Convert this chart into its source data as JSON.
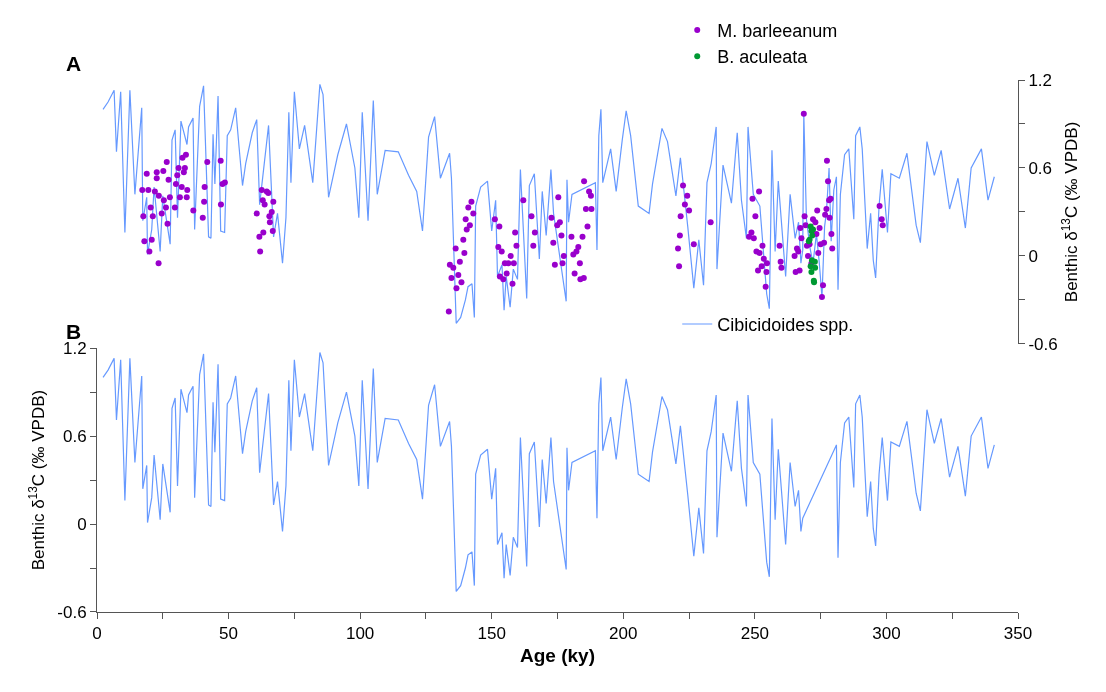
{
  "chart_data": [
    {
      "type": "scatter",
      "annotations": [
        "A"
      ],
      "y2label": "Benthic δ$^{13}$C (‰ VPDB)",
      "xlim": [
        0,
        350
      ],
      "y2lim": [
        -0.6,
        1.2
      ],
      "y2ticks": [
        -0.6,
        {
          "value": -0.3,
          "label": null
        },
        0,
        {
          "value": 0.3,
          "label": null
        },
        0.6,
        {
          "value": 0.9,
          "label": null
        },
        1.2
      ],
      "tick_labels": "y",
      "legend": "top",
      "series": [
        {
          "type": "line",
          "axis": "y2",
          "color": "#6699ff",
          "marker": "none",
          "x": [
            2.3,
            4.2,
            6.5,
            7.4,
            9,
            10.6,
            12.5,
            14.4,
            17,
            17.4,
            18.9,
            19.2,
            20.8,
            21.7,
            24,
            25,
            27.8,
            28.5,
            29.7,
            30.6,
            31.9,
            34.2,
            34.8,
            36.5,
            37.1,
            39,
            40.5,
            42.4,
            43.3,
            44.1,
            44.8,
            46,
            47,
            48.5,
            49.5,
            50.8,
            52.7,
            54,
            55.3,
            56.5,
            59,
            60.7,
            61.8,
            65.2,
            67.1,
            68.6,
            70.5,
            71.8,
            72.9,
            73.7,
            75,
            76.9,
            78.9,
            82,
            84.7,
            85.9,
            88,
            91.5,
            94.8,
            98,
            99.5,
            100.8,
            103,
            105,
            106.5,
            109.5,
            114.5,
            118.4,
            121.5,
            123.7,
            126,
            128.3,
            130.5,
            134,
            134.7,
            136.5,
            138.2,
            140,
            141,
            142.5,
            143.4,
            143.9,
            145.8,
            148.4,
            150,
            151.5,
            152.2,
            153.9,
            154.7,
            155.5,
            157,
            158.2,
            159.8,
            160.9,
            163.3,
            164.3,
            166.2,
            168.1,
            169.2,
            170.7,
            172.5,
            173.5,
            178.3,
            178.6,
            179.2,
            180.5,
            189.4,
            190,
            190.7,
            191.5,
            192.2,
            195.2,
            197.3,
            199.6,
            201.1,
            202.8,
            205.7,
            209.8,
            211.1,
            214.7,
            216.8,
            220,
            221.7,
            224.5,
            226.8,
            228.7,
            230.5,
            231.8,
            233.4,
            235.3,
            235.6,
            237.9,
            241.1,
            243.3,
            244.9,
            246.8,
            247.4,
            249.4,
            251.9,
            254.5,
            255.5,
            256.5,
            257.7,
            258.9,
            261.7,
            263.4,
            265.3,
            266.6,
            267.5,
            268.2,
            268.6,
            269.6,
            271,
            272.1,
            273.4,
            274.5,
            275.5,
            276.5,
            277.2,
            278.2,
            279,
            280,
            281,
            281.6,
            282.5,
            284.1,
            285.7,
            287.6,
            288.3,
            289.9,
            290.8,
            292.7,
            294,
            295,
            295.9,
            297.2,
            298.4,
            300.4,
            301.7,
            304.9,
            307.8,
            311.3,
            312.9,
            315.4,
            318.2,
            320.8,
            324,
            327.2,
            330,
            332.2,
            336.1,
            338.6,
            341
          ],
          "values": [
            1.0,
            1.05,
            1.13,
            0.71,
            1.12,
            0.16,
            1.13,
            0.42,
            1.01,
            0.24,
            0.4,
            0.01,
            0.18,
            0.47,
            0.03,
            0.41,
            0.08,
            0.79,
            0.86,
            0.26,
            0.92,
            0.76,
            0.88,
            0.94,
            0.18,
            1.02,
            1.16,
            0.13,
            0.12,
            0.83,
            0.49,
            1.09,
            0.17,
            0.16,
            0.82,
            0.86,
            1.01,
            0.74,
            0.48,
            0.63,
            0.84,
            0.93,
            0.35,
            0.89,
            0.13,
            0.29,
            -0.05,
            0.26,
            0.98,
            0.5,
            1.12,
            0.73,
            0.89,
            0.5,
            1.17,
            1.1,
            0.4,
            0.69,
            0.9,
            0.6,
            0.26,
            0.98,
            0.24,
            1.06,
            0.42,
            0.72,
            0.71,
            0.55,
            0.44,
            0.17,
            0.81,
            0.95,
            0.53,
            0.7,
            0.53,
            -0.46,
            -0.42,
            -0.3,
            -0.21,
            -0.19,
            -0.42,
            0.34,
            0.47,
            0.51,
            0.17,
            0.38,
            -0.14,
            -0.06,
            -0.37,
            -0.14,
            -0.35,
            -0.09,
            -0.16,
            0.59,
            -0.29,
            0.48,
            0.56,
            -0.02,
            0.44,
            0.14,
            0.59,
            0.29,
            -0.31,
            0.52,
            0.23,
            0.42,
            0.5,
            0.04,
            0.82,
            1.0,
            0.5,
            0.73,
            0.44,
            0.79,
            0.99,
            0.82,
            0.34,
            0.29,
            0.49,
            0.87,
            0.78,
            0.41,
            0.67,
            0.2,
            -0.22,
            0.11,
            -0.2,
            0.5,
            0.63,
            0.88,
            -0.09,
            0.62,
            0.36,
            0.84,
            0.38,
            0.12,
            0.88,
            0.42,
            0.34,
            -0.26,
            -0.36,
            0.72,
            0.03,
            0.51,
            -0.14,
            0.42,
            0.12,
            0.23,
            -0.05,
            0.04,
            0.97,
            0.25,
            0.05,
            -0.05,
            0.15,
            -0.05,
            -0.28,
            0.2,
            0.3,
            0.6,
            0.1,
            0.45,
            0.54,
            -0.23,
            0.42,
            0.69,
            0.73,
            0.25,
            0.82,
            0.88,
            0.73,
            0.05,
            0.29,
            -0.03,
            -0.15,
            0.34,
            0.59,
            0.16,
            0.56,
            0.53,
            0.7,
            0.21,
            0.09,
            0.78,
            0.55,
            0.72,
            0.32,
            0.53,
            0.19,
            0.6,
            0.73,
            0.38,
            0.54
          ]
        },
        {
          "type": "scatter",
          "axis": "y2",
          "name": "M. barleeanum",
          "color": "#9900cc",
          "marker": "circle",
          "x": [
            17.2,
            17.6,
            18.0,
            18.9,
            19.5,
            19.9,
            20.4,
            20.8,
            21.2,
            22.0,
            22.7,
            22.7,
            23.4,
            23.5,
            24.6,
            25.2,
            25.4,
            26.2,
            26.5,
            26.8,
            27.2,
            27.7,
            29.6,
            30.0,
            30.5,
            31.0,
            31.5,
            32.2,
            32.5,
            33.0,
            33.4,
            33.8,
            34.1,
            34.3,
            36.6,
            40.2,
            40.7,
            40.9,
            41.9,
            47.1,
            47.0,
            47.7,
            48.6,
            60.7,
            61.7,
            62.0,
            62.6,
            63.0,
            63.2,
            63.7,
            64.5,
            65.1,
            65.5,
            65.7,
            66.4,
            66.8,
            67.0,
            133.7,
            134.1,
            134.7,
            135.4,
            136.3,
            136.6,
            137.3,
            137.9,
            138.5,
            139.2,
            139.6,
            140.1,
            140.5,
            141.1,
            141.7,
            142.3,
            143.0,
            151.2,
            152.5,
            152.9,
            153.1,
            153.8,
            154.4,
            155.0,
            155.7,
            156.3,
            157.2,
            157.9,
            158.4,
            158.9,
            159.4,
            162.0,
            165.1,
            165.8,
            166.4,
            172.7,
            173.4,
            174.0,
            174.9,
            175.3,
            175.9,
            176.5,
            176.9,
            177.4,
            180.3,
            181.0,
            181.5,
            182.2,
            182.9,
            183.5,
            183.7,
            184.5,
            185.0,
            185.1,
            185.8,
            186.4,
            187.0,
            187.7,
            187.9,
            220.8,
            221.2,
            221.5,
            221.8,
            222.7,
            223.4,
            224.3,
            225.0,
            226.8,
            233.2,
            247.8,
            248.7,
            249.1,
            249.6,
            250.2,
            250.6,
            251.2,
            251.6,
            251.8,
            252.6,
            252.9,
            253.4,
            254.1,
            254.4,
            254.6,
            259.4,
            259.8,
            260.1,
            265.1,
            265.5,
            266.0,
            266.5,
            267.0,
            267.3,
            267.7,
            268.6,
            268.9,
            269.3,
            269.8,
            270.2,
            270.8,
            271.5,
            272.1,
            273.0,
            273.4,
            273.7,
            274.1,
            274.6,
            275.0,
            275.5,
            275.9,
            276.3,
            276.7,
            277.2,
            277.4,
            277.8,
            278.2,
            278.4,
            278.8,
            279.1,
            279.4,
            297.4,
            298.2,
            298.6
          ],
          "values": [
            0.45,
            0.27,
            0.1,
            0.56,
            0.45,
            0.03,
            0.33,
            0.11,
            0.27,
            0.44,
            0.57,
            0.53,
            -0.05,
            0.41,
            0.29,
            0.58,
            0.38,
            0.33,
            0.64,
            0.22,
            0.52,
            0.4,
            0.33,
            0.49,
            0.55,
            0.6,
            0.4,
            0.47,
            0.67,
            0.57,
            0.6,
            0.69,
            0.4,
            0.45,
            0.31,
            0.26,
            0.37,
            0.47,
            0.64,
            0.35,
            0.65,
            0.49,
            0.5,
            0.29,
            0.13,
            0.03,
            0.45,
            0.38,
            0.16,
            0.35,
            0.44,
            0.43,
            0.27,
            0.23,
            0.3,
            0.17,
            0.37,
            -0.38,
            -0.06,
            -0.15,
            -0.08,
            0.05,
            -0.22,
            -0.13,
            -0.04,
            -0.18,
            0.11,
            0.02,
            0.25,
            0.18,
            0.33,
            0.21,
            0.37,
            0.29,
            0.25,
            0.06,
            0.2,
            -0.14,
            0.03,
            -0.16,
            -0.05,
            -0.12,
            -0.05,
            0.0,
            -0.19,
            -0.05,
            0.16,
            0.07,
            0.38,
            0.27,
            0.07,
            0.16,
            0.26,
            0.09,
            -0.06,
            0.21,
            0.4,
            0.23,
            0.14,
            -0.05,
            0.0,
            0.13,
            0.01,
            -0.12,
            0.03,
            0.06,
            -0.05,
            -0.16,
            0.13,
            -0.15,
            0.51,
            0.32,
            0.2,
            0.44,
            0.41,
            0.32,
            0.05,
            -0.07,
            0.14,
            0.27,
            0.48,
            0.35,
            0.41,
            0.31,
            0.08,
            0.23,
            0.13,
            0.16,
            0.39,
            0.12,
            0.27,
            0.03,
            -0.1,
            0.44,
            0.02,
            -0.07,
            0.07,
            -0.02,
            -0.21,
            -0.11,
            -0.05,
            0.07,
            -0.04,
            -0.08,
            0.0,
            -0.11,
            0.05,
            0.03,
            -0.1,
            0.19,
            0.12,
            0.97,
            0.27,
            0.21,
            0.07,
            0.0,
            0.08,
            -0.05,
            0.25,
            0.23,
            0.15,
            0.31,
            0.02,
            0.19,
            0.08,
            -0.28,
            -0.2,
            0.09,
            0.28,
            0.32,
            0.65,
            0.51,
            0.38,
            0.26,
            0.39,
            0.15,
            0.05,
            0.34,
            0.25,
            0.21
          ]
        },
        {
          "type": "scatter",
          "axis": "y2",
          "name": "B. aculeata",
          "color": "#009933",
          "marker": "circle",
          "x": [
            270.5,
            270.8,
            271.2,
            271.5,
            271.8,
            272.1,
            271.7,
            272.8,
            271.2,
            272.9,
            271.5,
            272.4,
            272.5
          ],
          "values": [
            0.1,
            0.11,
            0.2,
            0.17,
            0.14,
            0.18,
            -0.03,
            -0.04,
            -0.07,
            -0.08,
            -0.11,
            -0.17,
            -0.18
          ]
        }
      ]
    },
    {
      "type": "line",
      "annotations": [
        "B"
      ],
      "ylabel": "Benthic δ$^{13}$C (‰ VPDB)",
      "xlabel": "Age (ky)",
      "xlim": [
        0,
        350
      ],
      "ylim": [
        -0.6,
        1.2
      ],
      "xticks": [
        0,
        {
          "value": 25,
          "label": null
        },
        50,
        {
          "value": 75,
          "label": null
        },
        100,
        {
          "value": 125,
          "label": null
        },
        150,
        {
          "value": 175,
          "label": null
        },
        200,
        {
          "value": 225,
          "label": null
        },
        250,
        {
          "value": 275,
          "label": null
        },
        300,
        {
          "value": 325,
          "label": null
        },
        350
      ],
      "yticks": [
        -0.6,
        {
          "value": -0.3,
          "label": null
        },
        0,
        {
          "value": 0.3,
          "label": null
        },
        0.6,
        {
          "value": 0.9,
          "label": null
        },
        1.2
      ],
      "legend": "top",
      "marker": "none",
      "series": [
        {
          "name": "Cibicidoides spp.",
          "color": "#6699ff",
          "x": [
            2.3,
            4.2,
            6.5,
            7.4,
            9,
            10.6,
            12.5,
            14.4,
            17,
            17.4,
            18.9,
            19.2,
            20.8,
            21.7,
            24,
            25,
            27.8,
            28.5,
            29.7,
            30.6,
            31.9,
            34.2,
            34.8,
            36.5,
            37.1,
            39,
            40.5,
            42.4,
            43.3,
            44.1,
            44.8,
            46,
            47,
            48.5,
            49.5,
            50.8,
            52.7,
            54,
            55.3,
            56.5,
            59,
            60.7,
            61.8,
            65.2,
            67.1,
            68.6,
            70.5,
            71.8,
            72.9,
            73.7,
            75,
            76.9,
            78.9,
            82,
            84.7,
            85.9,
            88,
            91.5,
            94.8,
            98,
            99.5,
            100.8,
            103,
            105,
            106.5,
            109.5,
            114.5,
            118.4,
            121.5,
            123.7,
            126,
            128.3,
            130.5,
            134,
            134.7,
            136.5,
            138.2,
            140,
            141,
            142.5,
            143.4,
            143.9,
            145.8,
            148.4,
            150,
            151.5,
            152.2,
            153.9,
            154.7,
            155.5,
            157,
            158.2,
            159.8,
            160.9,
            163.3,
            164.3,
            166.2,
            168.1,
            169.2,
            170.7,
            172.5,
            173.5,
            178.3,
            178.6,
            179.2,
            180.5,
            189.4,
            190,
            190.7,
            191.5,
            192.2,
            195.2,
            197.3,
            199.6,
            201.1,
            202.8,
            205.7,
            209.8,
            211.1,
            214.7,
            216.8,
            220,
            221.7,
            224.5,
            226.8,
            228.7,
            230.5,
            231.8,
            233.4,
            235.3,
            235.6,
            237.9,
            241.1,
            243.3,
            244.9,
            246.8,
            247.4,
            249.4,
            251.9,
            254.5,
            255.5,
            256.5,
            257.7,
            258.9,
            261.7,
            263.4,
            265.3,
            266.6,
            267.5,
            268.2,
            281,
            281.6,
            282.5,
            284.1,
            285.7,
            287.6,
            288.3,
            289.9,
            290.8,
            292.7,
            294,
            295,
            295.9,
            297.2,
            298.4,
            300.4,
            301.7,
            304.9,
            307.8,
            311.3,
            312.9,
            315.4,
            318.2,
            320.8,
            324,
            327.2,
            330,
            332.2,
            336.1,
            338.6,
            341
          ],
          "values": [
            1.0,
            1.05,
            1.13,
            0.71,
            1.12,
            0.16,
            1.13,
            0.42,
            1.01,
            0.24,
            0.4,
            0.01,
            0.18,
            0.47,
            0.03,
            0.41,
            0.08,
            0.79,
            0.86,
            0.26,
            0.92,
            0.76,
            0.88,
            0.94,
            0.18,
            1.02,
            1.16,
            0.13,
            0.12,
            0.83,
            0.49,
            1.09,
            0.17,
            0.16,
            0.82,
            0.86,
            1.01,
            0.74,
            0.48,
            0.63,
            0.84,
            0.93,
            0.35,
            0.89,
            0.13,
            0.29,
            -0.05,
            0.26,
            0.98,
            0.5,
            1.12,
            0.73,
            0.89,
            0.5,
            1.17,
            1.1,
            0.4,
            0.69,
            0.9,
            0.6,
            0.26,
            0.98,
            0.24,
            1.06,
            0.42,
            0.72,
            0.71,
            0.55,
            0.44,
            0.17,
            0.81,
            0.95,
            0.53,
            0.7,
            0.53,
            -0.46,
            -0.42,
            -0.3,
            -0.21,
            -0.19,
            -0.42,
            0.34,
            0.47,
            0.51,
            0.17,
            0.38,
            -0.14,
            -0.06,
            -0.37,
            -0.14,
            -0.35,
            -0.09,
            -0.16,
            0.59,
            -0.29,
            0.48,
            0.56,
            -0.02,
            0.44,
            0.14,
            0.59,
            0.29,
            -0.31,
            0.52,
            0.23,
            0.42,
            0.5,
            0.04,
            0.82,
            1.0,
            0.5,
            0.73,
            0.44,
            0.79,
            0.99,
            0.82,
            0.34,
            0.29,
            0.49,
            0.87,
            0.78,
            0.41,
            0.67,
            0.2,
            -0.22,
            0.11,
            -0.2,
            0.5,
            0.63,
            0.88,
            -0.09,
            0.62,
            0.36,
            0.84,
            0.38,
            0.12,
            0.88,
            0.42,
            0.34,
            -0.26,
            -0.36,
            0.72,
            0.03,
            0.51,
            -0.14,
            0.42,
            0.12,
            0.23,
            -0.05,
            0.04,
            0.54,
            -0.23,
            0.42,
            0.69,
            0.73,
            0.25,
            0.82,
            0.88,
            0.73,
            0.05,
            0.29,
            -0.03,
            -0.15,
            0.34,
            0.59,
            0.16,
            0.56,
            0.53,
            0.7,
            0.21,
            0.09,
            0.78,
            0.55,
            0.72,
            0.32,
            0.53,
            0.19,
            0.6,
            0.73,
            0.38,
            0.54
          ]
        }
      ]
    }
  ]
}
